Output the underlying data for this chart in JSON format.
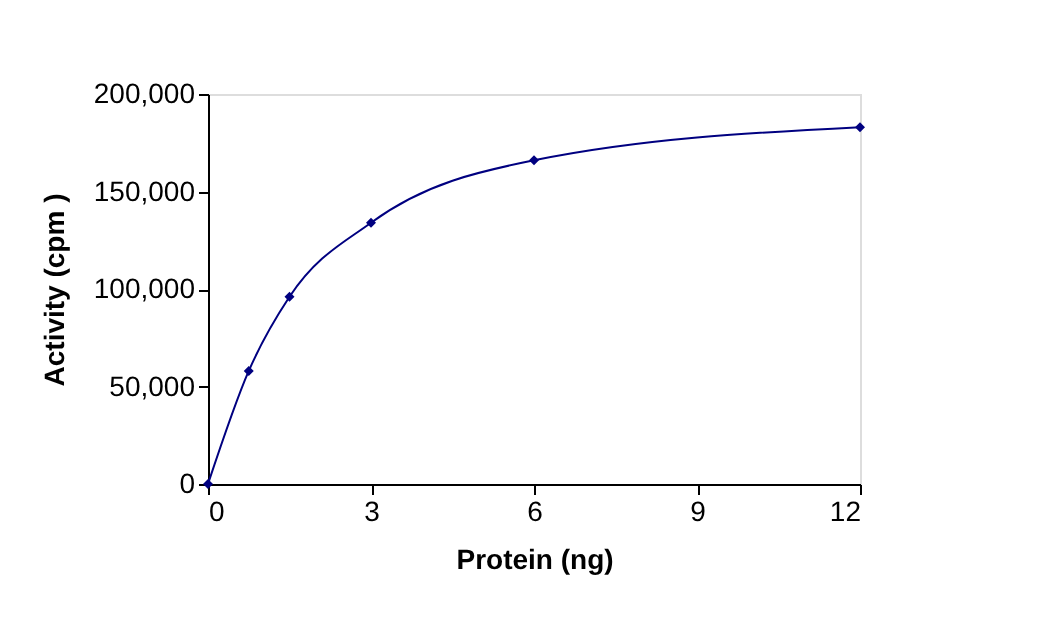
{
  "chart_data": {
    "type": "line",
    "xlabel": "Protein (ng)",
    "ylabel": "Activity  (cpm )",
    "x": [
      0,
      0.75,
      1.5,
      3,
      6,
      12
    ],
    "series": [
      {
        "color": "#000080",
        "values": [
          0,
          58000,
          96000,
          134000,
          166000,
          183000
        ]
      }
    ],
    "xlim": [
      0,
      12
    ],
    "xticks": [
      0,
      3,
      6,
      9,
      12
    ],
    "ylim": [
      0,
      200000
    ],
    "yticks": [
      {
        "value": 0,
        "label": "0"
      },
      {
        "value": 50000,
        "label": "50,000"
      },
      {
        "value": 100000,
        "label": "100,000"
      },
      {
        "value": 150000,
        "label": "150,000"
      },
      {
        "value": 200000,
        "label": "200,000"
      }
    ],
    "grid": false,
    "marker": "diamond",
    "line_style": "solid"
  }
}
